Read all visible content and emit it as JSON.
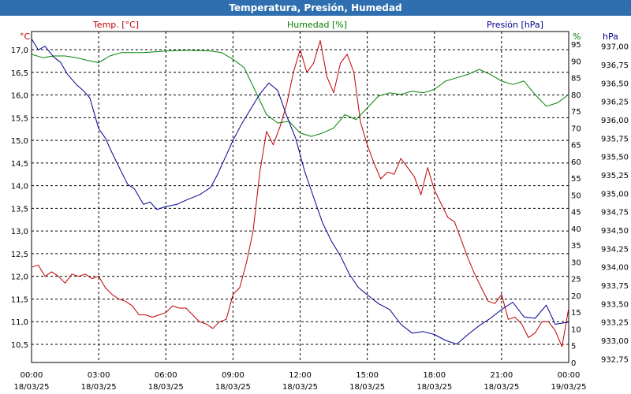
{
  "window": {
    "title": "Temperatura, Presión, Humedad"
  },
  "chart_data": {
    "type": "line",
    "title": "Temperatura, Presión, Humedad",
    "colors": {
      "temp": "#c00000",
      "hum": "#008000",
      "pres": "#000090"
    },
    "x_range_hours": [
      0,
      24
    ],
    "x_ticks": [
      {
        "h": 0,
        "time": "00:00",
        "date": "18/03/25"
      },
      {
        "h": 3,
        "time": "03:00",
        "date": "18/03/25"
      },
      {
        "h": 6,
        "time": "06:00",
        "date": "18/03/25"
      },
      {
        "h": 9,
        "time": "09:00",
        "date": "18/03/25"
      },
      {
        "h": 12,
        "time": "12:00",
        "date": "18/03/25"
      },
      {
        "h": 15,
        "time": "15:00",
        "date": "18/03/25"
      },
      {
        "h": 18,
        "time": "18:00",
        "date": "18/03/25"
      },
      {
        "h": 21,
        "time": "21:00",
        "date": "18/03/25"
      },
      {
        "h": 24,
        "time": "00:00",
        "date": "19/03/25"
      }
    ],
    "axes": {
      "temp": {
        "unit": "°C",
        "label": "Temp. [°C]",
        "range": [
          10.1,
          17.4
        ],
        "ticks": [
          "10,5",
          "11,0",
          "11,5",
          "12,0",
          "12,5",
          "13,0",
          "13,5",
          "14,0",
          "14,5",
          "15,0",
          "15,5",
          "16,0",
          "16,5",
          "17,0"
        ]
      },
      "hum": {
        "unit": "%",
        "label": "Humedad [%]",
        "range": [
          0,
          98.8
        ],
        "ticks": [
          "0",
          "5",
          "10",
          "15",
          "20",
          "25",
          "30",
          "35",
          "40",
          "45",
          "50",
          "55",
          "60",
          "65",
          "70",
          "75",
          "80",
          "85",
          "90",
          "95"
        ]
      },
      "pres": {
        "unit": "hPa",
        "label": "Presión [hPa]",
        "range": [
          932.7,
          937.2
        ],
        "ticks": [
          "932,75",
          "933,00",
          "933,25",
          "933,50",
          "933,75",
          "934,00",
          "934,25",
          "934,50",
          "934,75",
          "935,00",
          "935,25",
          "935,50",
          "935,75",
          "936,00",
          "936,25",
          "936,50",
          "936,75",
          "937,00"
        ]
      }
    },
    "series": [
      {
        "name": "Temp. [°C]",
        "axis": "temp",
        "points": [
          [
            0,
            12.2
          ],
          [
            0.3,
            12.25
          ],
          [
            0.6,
            12.0
          ],
          [
            0.9,
            12.1
          ],
          [
            1.2,
            12.0
          ],
          [
            1.5,
            11.85
          ],
          [
            1.8,
            12.05
          ],
          [
            2.1,
            12.0
          ],
          [
            2.4,
            12.05
          ],
          [
            2.7,
            11.95
          ],
          [
            3.0,
            12.0
          ],
          [
            3.3,
            11.75
          ],
          [
            3.6,
            11.6
          ],
          [
            3.9,
            11.5
          ],
          [
            4.2,
            11.45
          ],
          [
            4.5,
            11.35
          ],
          [
            4.8,
            11.15
          ],
          [
            5.1,
            11.15
          ],
          [
            5.4,
            11.1
          ],
          [
            5.7,
            11.15
          ],
          [
            6.0,
            11.2
          ],
          [
            6.3,
            11.35
          ],
          [
            6.6,
            11.3
          ],
          [
            6.9,
            11.3
          ],
          [
            7.2,
            11.15
          ],
          [
            7.5,
            11.0
          ],
          [
            7.8,
            10.95
          ],
          [
            8.1,
            10.85
          ],
          [
            8.4,
            11.0
          ],
          [
            8.7,
            11.05
          ],
          [
            9.0,
            11.6
          ],
          [
            9.3,
            11.75
          ],
          [
            9.6,
            12.3
          ],
          [
            9.9,
            13.0
          ],
          [
            10.2,
            14.3
          ],
          [
            10.5,
            15.2
          ],
          [
            10.8,
            14.9
          ],
          [
            11.1,
            15.3
          ],
          [
            11.4,
            15.8
          ],
          [
            11.7,
            16.5
          ],
          [
            12.0,
            17.0
          ],
          [
            12.3,
            16.5
          ],
          [
            12.6,
            16.7
          ],
          [
            12.9,
            17.2
          ],
          [
            13.2,
            16.4
          ],
          [
            13.5,
            16.05
          ],
          [
            13.8,
            16.7
          ],
          [
            14.1,
            16.9
          ],
          [
            14.4,
            16.5
          ],
          [
            14.7,
            15.4
          ],
          [
            15.0,
            14.9
          ],
          [
            15.3,
            14.5
          ],
          [
            15.6,
            14.15
          ],
          [
            15.9,
            14.3
          ],
          [
            16.2,
            14.25
          ],
          [
            16.5,
            14.6
          ],
          [
            16.8,
            14.4
          ],
          [
            17.1,
            14.2
          ],
          [
            17.4,
            13.8
          ],
          [
            17.7,
            14.4
          ],
          [
            18.0,
            13.9
          ],
          [
            18.3,
            13.6
          ],
          [
            18.6,
            13.3
          ],
          [
            18.9,
            13.2
          ],
          [
            19.2,
            12.8
          ],
          [
            19.5,
            12.4
          ],
          [
            19.8,
            12.05
          ],
          [
            20.1,
            11.75
          ],
          [
            20.4,
            11.45
          ],
          [
            20.7,
            11.4
          ],
          [
            21.0,
            11.6
          ],
          [
            21.3,
            11.05
          ],
          [
            21.6,
            11.1
          ],
          [
            21.9,
            10.95
          ],
          [
            22.2,
            10.65
          ],
          [
            22.5,
            10.75
          ],
          [
            22.8,
            11.0
          ],
          [
            23.1,
            11.0
          ],
          [
            23.4,
            10.8
          ],
          [
            23.7,
            10.45
          ],
          [
            24.0,
            11.3
          ]
        ]
      },
      {
        "name": "Humedad [%]",
        "axis": "hum",
        "points": [
          [
            0,
            92
          ],
          [
            0.5,
            91
          ],
          [
            1.0,
            91.5
          ],
          [
            1.5,
            91.5
          ],
          [
            2.0,
            91
          ],
          [
            2.5,
            90.2
          ],
          [
            3.0,
            89.5
          ],
          [
            3.5,
            91.5
          ],
          [
            4.0,
            92.5
          ],
          [
            5.0,
            92.5
          ],
          [
            6.0,
            93
          ],
          [
            7.0,
            93.2
          ],
          [
            8.0,
            93
          ],
          [
            8.5,
            92.5
          ],
          [
            9.0,
            90.5
          ],
          [
            9.5,
            88
          ],
          [
            10.0,
            81
          ],
          [
            10.5,
            74
          ],
          [
            11.0,
            71.5
          ],
          [
            11.5,
            72
          ],
          [
            12.0,
            68.5
          ],
          [
            12.5,
            67.5
          ],
          [
            13.0,
            68.5
          ],
          [
            13.5,
            70
          ],
          [
            14.0,
            74
          ],
          [
            14.5,
            72.5
          ],
          [
            15.0,
            76
          ],
          [
            15.5,
            79.5
          ],
          [
            16.0,
            80.5
          ],
          [
            16.5,
            80
          ],
          [
            17.0,
            81
          ],
          [
            17.5,
            80.5
          ],
          [
            18.0,
            81.5
          ],
          [
            18.5,
            84
          ],
          [
            19.0,
            85
          ],
          [
            19.5,
            86
          ],
          [
            20.0,
            87.5
          ],
          [
            20.5,
            86
          ],
          [
            21.0,
            84
          ],
          [
            21.5,
            83
          ],
          [
            22.0,
            84
          ],
          [
            22.5,
            80
          ],
          [
            23.0,
            76.5
          ],
          [
            23.5,
            77.5
          ],
          [
            24.0,
            80
          ]
        ]
      },
      {
        "name": "Presión [hPa]",
        "axis": "pres",
        "points": [
          [
            0,
            937.1
          ],
          [
            0.3,
            936.95
          ],
          [
            0.6,
            937.0
          ],
          [
            1.0,
            936.85
          ],
          [
            1.3,
            936.78
          ],
          [
            1.6,
            936.62
          ],
          [
            2.0,
            936.48
          ],
          [
            2.3,
            936.4
          ],
          [
            2.6,
            936.3
          ],
          [
            3.0,
            935.88
          ],
          [
            3.3,
            935.75
          ],
          [
            3.6,
            935.55
          ],
          [
            4.0,
            935.3
          ],
          [
            4.3,
            935.12
          ],
          [
            4.6,
            935.06
          ],
          [
            5.0,
            934.85
          ],
          [
            5.3,
            934.88
          ],
          [
            5.6,
            934.78
          ],
          [
            6.0,
            934.82
          ],
          [
            6.5,
            934.85
          ],
          [
            7.0,
            934.92
          ],
          [
            7.5,
            934.98
          ],
          [
            8.0,
            935.08
          ],
          [
            8.3,
            935.25
          ],
          [
            8.6,
            935.45
          ],
          [
            9.0,
            935.72
          ],
          [
            9.4,
            935.95
          ],
          [
            9.8,
            936.15
          ],
          [
            10.2,
            936.35
          ],
          [
            10.6,
            936.5
          ],
          [
            11.0,
            936.4
          ],
          [
            11.4,
            936.05
          ],
          [
            11.8,
            935.75
          ],
          [
            12.2,
            935.3
          ],
          [
            12.6,
            934.95
          ],
          [
            13.0,
            934.6
          ],
          [
            13.4,
            934.35
          ],
          [
            13.8,
            934.15
          ],
          [
            14.2,
            933.9
          ],
          [
            14.6,
            933.72
          ],
          [
            15.0,
            933.62
          ],
          [
            15.5,
            933.5
          ],
          [
            16.0,
            933.42
          ],
          [
            16.5,
            933.22
          ],
          [
            17.0,
            933.1
          ],
          [
            17.5,
            933.12
          ],
          [
            18.0,
            933.08
          ],
          [
            18.5,
            933.0
          ],
          [
            19.0,
            932.95
          ],
          [
            19.5,
            933.08
          ],
          [
            20.0,
            933.2
          ],
          [
            20.5,
            933.3
          ],
          [
            21.0,
            933.42
          ],
          [
            21.5,
            933.52
          ],
          [
            22.0,
            933.32
          ],
          [
            22.5,
            933.3
          ],
          [
            23.0,
            933.48
          ],
          [
            23.4,
            933.22
          ],
          [
            24.0,
            933.25
          ]
        ]
      }
    ]
  }
}
